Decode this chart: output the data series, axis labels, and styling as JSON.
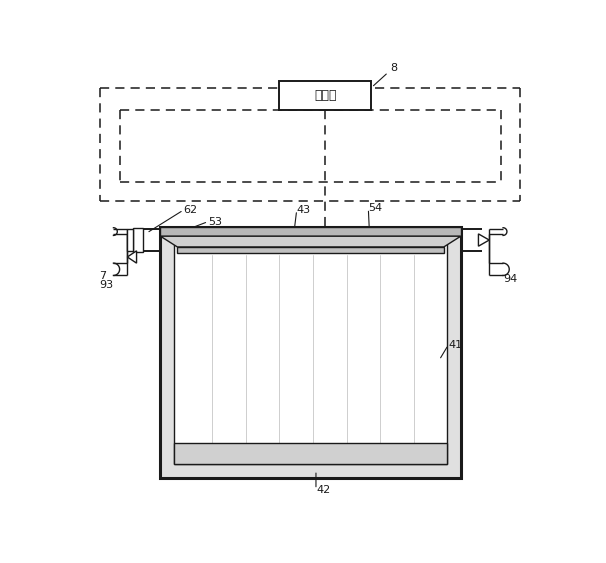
{
  "bg_color": "#ffffff",
  "lc": "#1a1a1a",
  "fig_w": 6.06,
  "fig_h": 5.63,
  "controller_text": "控制器",
  "label_fs": 8,
  "chinese_fs": 9
}
